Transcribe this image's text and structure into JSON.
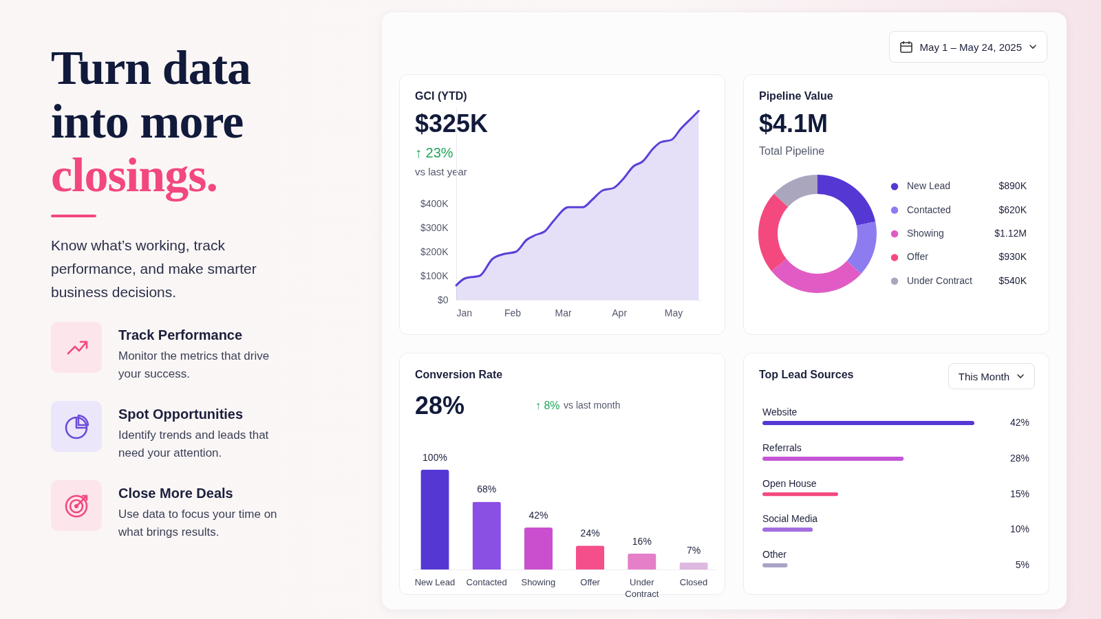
{
  "chart_data": [
    {
      "type": "other",
      "title": "Turn data into more closings.",
      "subtitle": "Know what’s working, track performance, and make smarter business decisions.",
      "annotations": [
        "Track Performance",
        "Monitor the metrics that drive your success.",
        "Spot Opportunities",
        "Identify trends and leads that need your attention.",
        "Close More Deals",
        "Use data to focus your time on what brings results.",
        "May 1 – May 24, 2025"
      ]
    },
    {
      "type": "area",
      "title": "GCI (YTD)",
      "subtitle": "$325K",
      "annotations": [
        "↑ 23%",
        "vs last year"
      ],
      "x": [
        "--01-01",
        "--01-06",
        "--01-14",
        "--01-21",
        "--01-27",
        "--02-03",
        "--02-09",
        "--02-14",
        "--02-19",
        "--02-24",
        "--03-04",
        "--03-12",
        "--03-17",
        "--03-23",
        "--03-29",
        "--04-03",
        "--04-09",
        "--04-14",
        "--04-20",
        "--04-24",
        "--04-30",
        "--05-05",
        "--05-11",
        "--05-15"
      ],
      "series": [
        {
          "color": "#5b3fd6",
          "values": [
            60,
            90,
            100,
            170,
            190,
            200,
            250,
            270,
            285,
            330,
            385,
            385,
            415,
            455,
            465,
            500,
            555,
            575,
            630,
            655,
            665,
            710,
            755,
            785
          ]
        }
      ],
      "xlim": [
        "--01-01",
        "--05-16"
      ],
      "xticks": [
        {
          "value": "--01-01",
          "label": "Jan"
        },
        {
          "value": "--02-01",
          "label": "Feb"
        },
        {
          "value": "--03-01",
          "label": "Mar"
        },
        {
          "value": "--04-01",
          "label": "Apr"
        },
        {
          "value": "--05-01",
          "label": "May"
        }
      ],
      "ylim": [
        0,
        800
      ],
      "yticks": [
        {
          "value": 0,
          "label": "$0"
        },
        {
          "value": 100,
          "label": "$100K"
        },
        {
          "value": 200,
          "label": "$200K"
        },
        {
          "value": 300,
          "label": "$300K"
        },
        {
          "value": 400,
          "label": "$400K"
        }
      ]
    },
    {
      "type": "donut",
      "title": "Pipeline Value",
      "subtitle": "$4.1M",
      "annotations": [
        "Total Pipeline"
      ],
      "categories": [
        "New Lead",
        "Contacted",
        "Showing",
        "Offer",
        "Under Contract"
      ],
      "values": [
        890000,
        620000,
        1120000,
        930000,
        540000
      ],
      "value_labels": [
        "$890K",
        "$620K",
        "$1.12M",
        "$930K",
        "$540K"
      ],
      "colors": [
        "#5538d4",
        "#8c7cf0",
        "#e05cc4",
        "#f4497f",
        "#aaa6bd"
      ],
      "legend": "right"
    },
    {
      "type": "bar",
      "title": "Conversion Rate",
      "subtitle": "28%",
      "annotations": [
        "↑ 8%",
        "vs last month"
      ],
      "categories": [
        "New Lead",
        "Contacted",
        "Showing",
        "Offer",
        "Under Contract",
        "Closed"
      ],
      "values": [
        100,
        68,
        42,
        24,
        16,
        7
      ],
      "value_labels": [
        "100%",
        "68%",
        "42%",
        "24%",
        "16%",
        "7%"
      ],
      "colors": [
        "#5538d4",
        "#8a4fe3",
        "#c94fcf",
        "#f44f8a",
        "#e47fc8",
        "#ddb8e0"
      ]
    },
    {
      "type": "bar",
      "orientation": "horizontal",
      "title": "Top Lead Sources",
      "annotations": [
        "This Month"
      ],
      "categories": [
        "Website",
        "Referrals",
        "Open House",
        "Social Media",
        "Other"
      ],
      "values": [
        42,
        28,
        15,
        10,
        5
      ],
      "value_labels": [
        "42%",
        "28%",
        "15%",
        "10%",
        "5%"
      ],
      "colors": [
        "#5538d4",
        "#c455d6",
        "#f4497f",
        "#a36ee0",
        "#a9a4c6"
      ]
    }
  ]
}
